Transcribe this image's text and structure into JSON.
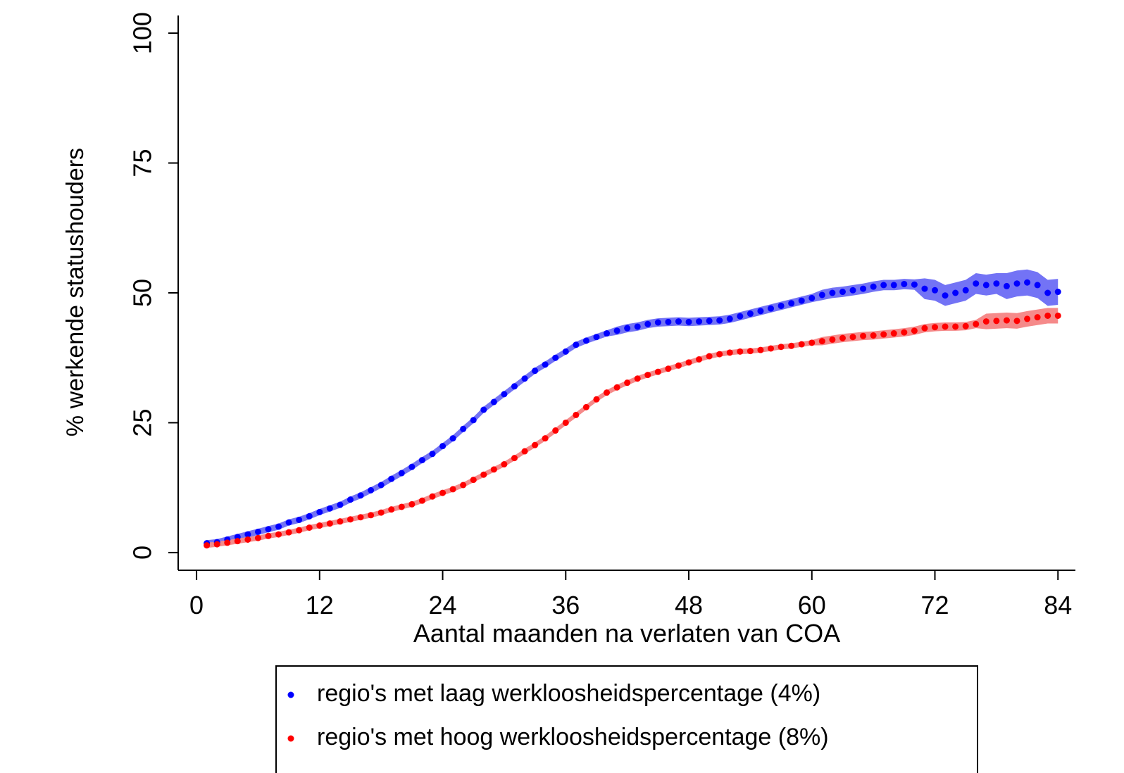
{
  "chart_data": {
    "type": "scatter",
    "x_label": "Aantal maanden na verlaten van COA",
    "y_label": "% werkende statushouders",
    "xlim": [
      -1.79,
      85.7
    ],
    "ylim": [
      -3.4,
      103.4
    ],
    "xticks": [
      0,
      12,
      24,
      36,
      48,
      60,
      72,
      84
    ],
    "yticks": [
      0,
      25,
      50,
      75,
      100
    ],
    "legend": "bottom",
    "x": [
      1,
      2,
      3,
      4,
      5,
      6,
      7,
      8,
      9,
      10,
      11,
      12,
      13,
      14,
      15,
      16,
      17,
      18,
      19,
      20,
      21,
      22,
      23,
      24,
      25,
      26,
      27,
      28,
      29,
      30,
      31,
      32,
      33,
      34,
      35,
      36,
      37,
      38,
      39,
      40,
      41,
      42,
      43,
      44,
      45,
      46,
      47,
      48,
      49,
      50,
      51,
      52,
      53,
      54,
      55,
      56,
      57,
      58,
      59,
      60,
      61,
      62,
      63,
      64,
      65,
      66,
      67,
      68,
      69,
      70,
      71,
      72,
      73,
      74,
      75,
      76,
      77,
      78,
      79,
      80,
      81,
      82,
      83,
      84
    ],
    "series": [
      {
        "name": "regio's met laag werkloosheidspercentage (4%)",
        "color": "#0000ff",
        "band_color": "#7373f5",
        "values": [
          1.8,
          2.0,
          2.5,
          3.0,
          3.5,
          4.0,
          4.5,
          5.0,
          5.8,
          6.3,
          7.0,
          7.8,
          8.5,
          9.2,
          10.2,
          11.0,
          12.0,
          13.0,
          14.2,
          15.3,
          16.5,
          17.8,
          19.0,
          20.5,
          22.0,
          23.8,
          25.5,
          27.5,
          29.0,
          30.5,
          32.0,
          33.5,
          35.0,
          36.2,
          37.5,
          38.7,
          40.0,
          40.8,
          41.5,
          42.2,
          42.7,
          43.2,
          43.5,
          44.0,
          44.3,
          44.4,
          44.5,
          44.4,
          44.5,
          44.6,
          44.7,
          45.0,
          45.5,
          46.0,
          46.5,
          47.0,
          47.5,
          48.0,
          48.5,
          49.0,
          49.6,
          50.0,
          50.2,
          50.5,
          50.8,
          51.2,
          51.5,
          51.5,
          51.7,
          51.6,
          50.8,
          50.5,
          49.5,
          50.0,
          50.5,
          51.8,
          51.5,
          51.8,
          51.3,
          51.8,
          52.0,
          51.5,
          50.0,
          50.2
        ],
        "ci_lower": [
          1.2,
          1.4,
          1.9,
          2.4,
          2.9,
          3.4,
          3.9,
          4.4,
          5.2,
          5.7,
          6.4,
          7.2,
          7.9,
          8.6,
          9.6,
          10.4,
          11.4,
          12.4,
          13.6,
          14.7,
          15.9,
          17.2,
          18.4,
          19.9,
          21.4,
          23.2,
          24.9,
          26.9,
          28.4,
          29.9,
          31.4,
          32.9,
          34.4,
          35.6,
          36.9,
          38.1,
          39.4,
          40.2,
          40.9,
          41.6,
          41.9,
          42.4,
          42.7,
          43.2,
          43.5,
          43.6,
          43.7,
          43.6,
          43.7,
          43.8,
          43.9,
          44.2,
          44.7,
          45.2,
          45.7,
          46.2,
          46.7,
          47.2,
          47.7,
          48.2,
          48.6,
          49.0,
          49.2,
          49.5,
          49.8,
          50.2,
          50.5,
          50.5,
          50.7,
          50.6,
          48.8,
          48.5,
          47.5,
          48.0,
          48.5,
          49.8,
          49.5,
          49.8,
          48.8,
          49.3,
          49.5,
          49.0,
          47.5,
          47.7
        ],
        "ci_upper": [
          2.4,
          2.6,
          3.1,
          3.6,
          4.1,
          4.6,
          5.1,
          5.6,
          6.4,
          6.9,
          7.6,
          8.4,
          9.1,
          9.8,
          10.8,
          11.6,
          12.6,
          13.6,
          14.8,
          15.9,
          17.1,
          18.4,
          19.6,
          21.1,
          22.6,
          24.4,
          26.1,
          28.1,
          29.6,
          31.1,
          32.6,
          34.1,
          35.6,
          36.8,
          38.1,
          39.3,
          40.6,
          41.4,
          42.1,
          42.8,
          43.5,
          44.0,
          44.3,
          44.8,
          45.1,
          45.2,
          45.3,
          45.2,
          45.3,
          45.4,
          45.5,
          45.8,
          46.3,
          46.8,
          47.3,
          47.8,
          48.3,
          48.8,
          49.3,
          49.8,
          50.6,
          51.0,
          51.2,
          51.5,
          51.8,
          52.2,
          52.5,
          52.5,
          52.7,
          52.6,
          52.8,
          52.5,
          51.5,
          52.0,
          52.5,
          53.8,
          53.5,
          53.8,
          53.8,
          54.3,
          54.5,
          54.0,
          52.5,
          52.7
        ]
      },
      {
        "name": "regio's met hoog werkloosheidspercentage (8%)",
        "color": "#ff0000",
        "band_color": "#f58a8a",
        "values": [
          1.4,
          1.6,
          1.9,
          2.2,
          2.5,
          2.8,
          3.2,
          3.5,
          3.9,
          4.3,
          4.8,
          5.2,
          5.6,
          6.0,
          6.4,
          6.8,
          7.2,
          7.7,
          8.3,
          8.8,
          9.3,
          10.0,
          10.8,
          11.5,
          12.2,
          13.0,
          14.0,
          15.0,
          16.0,
          17.0,
          18.2,
          19.5,
          20.7,
          22.0,
          23.5,
          25.0,
          26.5,
          28.0,
          29.5,
          30.8,
          31.8,
          32.7,
          33.5,
          34.2,
          34.8,
          35.4,
          36.0,
          36.6,
          37.2,
          37.8,
          38.2,
          38.5,
          38.7,
          38.8,
          39.0,
          39.3,
          39.6,
          39.8,
          40.1,
          40.4,
          40.7,
          41.0,
          41.3,
          41.5,
          41.7,
          41.8,
          42.0,
          42.2,
          42.4,
          42.7,
          43.2,
          43.4,
          43.5,
          43.5,
          43.6,
          44.0,
          44.5,
          44.6,
          44.7,
          44.6,
          45.0,
          45.3,
          45.6,
          45.6
        ],
        "ci_lower": [
          0.9,
          1.1,
          1.4,
          1.7,
          2.0,
          2.3,
          2.7,
          3.0,
          3.4,
          3.8,
          4.3,
          4.7,
          5.1,
          5.5,
          5.9,
          6.3,
          6.7,
          7.2,
          7.8,
          8.3,
          8.8,
          9.5,
          10.3,
          11.0,
          11.7,
          12.5,
          13.5,
          14.5,
          15.5,
          16.5,
          17.7,
          19.0,
          20.2,
          21.5,
          23.0,
          24.5,
          26.0,
          27.5,
          29.0,
          30.3,
          31.3,
          32.2,
          33.0,
          33.7,
          34.3,
          34.9,
          35.5,
          36.1,
          36.7,
          37.3,
          37.7,
          38.0,
          38.2,
          38.3,
          38.5,
          38.8,
          39.1,
          39.3,
          39.6,
          39.9,
          39.9,
          40.2,
          40.5,
          40.7,
          40.9,
          41.0,
          41.2,
          41.4,
          41.6,
          41.9,
          42.4,
          42.6,
          42.7,
          42.7,
          42.8,
          43.2,
          43.0,
          43.1,
          43.2,
          43.1,
          43.5,
          43.8,
          44.1,
          44.1
        ],
        "ci_upper": [
          1.9,
          2.1,
          2.4,
          2.7,
          3.0,
          3.3,
          3.7,
          4.0,
          4.4,
          4.8,
          5.3,
          5.7,
          6.1,
          6.5,
          6.9,
          7.3,
          7.7,
          8.2,
          8.8,
          9.3,
          9.8,
          10.5,
          11.3,
          12.0,
          12.7,
          13.5,
          14.5,
          15.5,
          16.5,
          17.5,
          18.7,
          20.0,
          21.2,
          22.5,
          24.0,
          25.5,
          27.0,
          28.5,
          30.0,
          31.3,
          32.3,
          33.2,
          34.0,
          34.7,
          35.3,
          35.9,
          36.5,
          37.1,
          37.7,
          38.3,
          38.7,
          39.0,
          39.2,
          39.3,
          39.5,
          39.8,
          40.1,
          40.3,
          40.6,
          40.9,
          41.5,
          41.8,
          42.1,
          42.3,
          42.5,
          42.6,
          42.8,
          43.0,
          43.2,
          43.5,
          44.0,
          44.2,
          44.3,
          44.3,
          44.4,
          44.8,
          46.0,
          46.1,
          46.2,
          46.1,
          46.5,
          46.8,
          47.1,
          47.1
        ]
      }
    ]
  }
}
